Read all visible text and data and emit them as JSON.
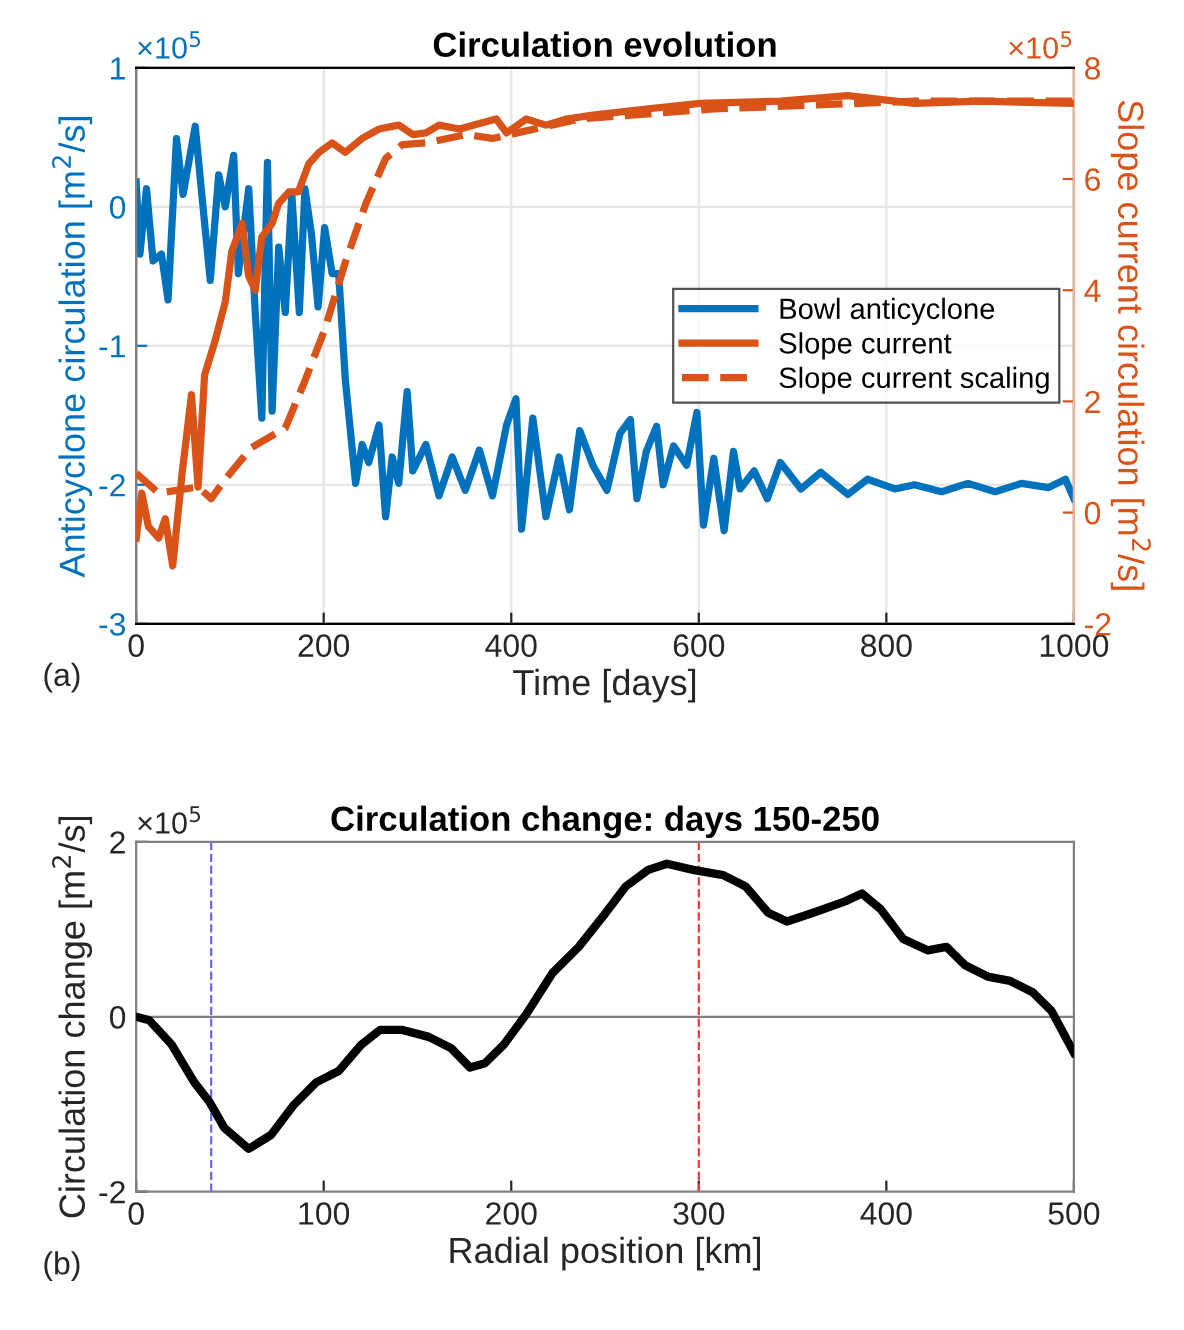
{
  "chart_data": [
    {
      "type": "line",
      "title": "Circulation evolution",
      "xlabel": "Time [days]",
      "ylabel": "Anticyclone circulation [m$^{2}$/s]",
      "y2label": "Slope current circulation [m$^{2}$/s]",
      "xlim": [
        0,
        1000
      ],
      "xticks": [
        0,
        200,
        400,
        600,
        800,
        1000
      ],
      "ylim": [
        -3,
        1
      ],
      "yticks": [
        -3,
        -2,
        -1,
        0,
        1
      ],
      "y2lim": [
        -2,
        8
      ],
      "y2ticks": [
        -2,
        0,
        2,
        4,
        6,
        8
      ],
      "grid": true,
      "legend": "center right",
      "marker": "none",
      "annotations": [
        "×10$^{5}$",
        "×10$^{5}$",
        "(a)"
      ],
      "series": [
        {
          "name": "Bowl anticyclone",
          "color": "#0072bd",
          "line_style": "solid",
          "x": [
            0,
            4,
            11,
            18,
            27,
            34,
            43,
            50,
            63,
            70,
            79,
            88,
            95,
            104,
            109,
            120,
            127,
            134,
            140,
            145,
            152,
            159,
            166,
            174,
            180,
            187,
            194,
            201,
            209,
            216,
            223,
            234,
            241,
            248,
            259,
            266,
            273,
            280,
            289,
            295,
            309,
            323,
            337,
            351,
            366,
            380,
            395,
            405,
            411,
            423,
            437,
            451,
            462,
            473,
            487,
            502,
            516,
            527,
            534,
            544,
            555,
            562,
            573,
            587,
            598,
            605,
            616,
            627,
            637,
            644,
            659,
            673,
            687,
            709,
            730,
            759,
            780,
            809,
            830,
            859,
            887,
            916,
            944,
            973,
            991,
            1000
          ],
          "values": [
            0.18,
            -0.34,
            0.13,
            -0.39,
            -0.34,
            -0.67,
            0.49,
            0.09,
            0.58,
            0.09,
            -0.53,
            0.23,
            0,
            0.37,
            -0.48,
            0.13,
            -0.76,
            -1.52,
            0.32,
            -1.47,
            -0.29,
            -0.76,
            0.09,
            -0.76,
            0.13,
            -0.2,
            -0.72,
            -0.15,
            -0.48,
            -0.48,
            -1.24,
            -1.99,
            -1.71,
            -1.84,
            -1.57,
            -2.23,
            -1.8,
            -1.99,
            -1.33,
            -1.9,
            -1.71,
            -2.08,
            -1.8,
            -2.04,
            -1.75,
            -2.08,
            -1.57,
            -1.38,
            -2.32,
            -1.52,
            -2.23,
            -1.8,
            -2.18,
            -1.61,
            -1.86,
            -2.04,
            -1.63,
            -1.53,
            -2.1,
            -1.76,
            -1.58,
            -2.0,
            -1.72,
            -1.86,
            -1.48,
            -2.29,
            -1.81,
            -2.33,
            -1.76,
            -2.03,
            -1.9,
            -2.1,
            -1.84,
            -2.03,
            -1.91,
            -2.07,
            -1.96,
            -2.03,
            -2.0,
            -2.05,
            -1.99,
            -2.05,
            -1.99,
            -2.02,
            -1.96,
            -2.1
          ]
        },
        {
          "name": "Slope current",
          "color": "#d95319",
          "line_style": "solid",
          "axis": "y2",
          "x": [
            0,
            6,
            13,
            24,
            31,
            39,
            49,
            59,
            66,
            73,
            84,
            95,
            102,
            113,
            120,
            127,
            134,
            145,
            152,
            163,
            173,
            184,
            195,
            209,
            223,
            241,
            259,
            280,
            295,
            309,
            323,
            345,
            366,
            384,
            395,
            416,
            437,
            459,
            487,
            544,
            601,
            687,
            759,
            830,
            901,
            1000
          ],
          "values": [
            -0.46,
            0.35,
            -0.25,
            -0.46,
            -0.11,
            -0.96,
            0.71,
            2.12,
            0.46,
            2.48,
            3.08,
            3.79,
            4.7,
            5.2,
            4.25,
            4.0,
            4.96,
            5.2,
            5.56,
            5.77,
            5.77,
            6.27,
            6.48,
            6.65,
            6.48,
            6.73,
            6.9,
            6.97,
            6.8,
            6.83,
            6.97,
            6.9,
            7.0,
            7.08,
            6.83,
            7.08,
            6.97,
            7.08,
            7.15,
            7.26,
            7.36,
            7.4,
            7.5,
            7.36,
            7.4,
            7.36
          ]
        },
        {
          "name": "Slope current scaling",
          "color": "#d95319",
          "line_style": "dashed",
          "axis": "y2",
          "x": [
            0,
            24,
            66,
            80,
            95,
            123,
            159,
            180,
            201,
            223,
            245,
            266,
            284,
            309,
            352,
            380,
            473,
            616,
            723,
            830,
            1000
          ],
          "values": [
            0.71,
            0.35,
            0.46,
            0.25,
            0.6,
            1.17,
            1.52,
            2.37,
            3.29,
            4.5,
            5.56,
            6.37,
            6.62,
            6.65,
            6.8,
            6.73,
            7.08,
            7.26,
            7.33,
            7.4,
            7.4
          ]
        }
      ]
    },
    {
      "type": "line",
      "title": "Circulation change: days 150-250",
      "xlabel": "Radial position [km]",
      "ylabel": "Circulation change [m$^{2}$/s]",
      "xlim": [
        0,
        500
      ],
      "xticks": [
        0,
        100,
        200,
        300,
        400,
        500
      ],
      "ylim": [
        -2,
        2
      ],
      "yticks": [
        -2,
        0,
        2
      ],
      "grid": false,
      "marker": "none",
      "annotations": [
        "×10$^{5}$",
        "(b)"
      ],
      "ref_lines": [
        {
          "axis": "y",
          "value": 0,
          "color": "#808080",
          "line_style": "solid"
        },
        {
          "axis": "x",
          "value": 40,
          "color": "#6666ff",
          "line_style": "dashed"
        },
        {
          "axis": "x",
          "value": 300,
          "color": "#ff3333",
          "line_style": "dashed"
        }
      ],
      "series": [
        {
          "color": "#000000",
          "line_style": "solid",
          "x": [
            0,
            7,
            19,
            31,
            39,
            47,
            60,
            72,
            84,
            96,
            108,
            120,
            130,
            142,
            156,
            168,
            178,
            186,
            196,
            208,
            222,
            236,
            249,
            261,
            273,
            283,
            297,
            313,
            325,
            337,
            347,
            361,
            378,
            387,
            397,
            409,
            422,
            432,
            442,
            454,
            466,
            478,
            488,
            500
          ],
          "values": [
            0,
            -0.04,
            -0.32,
            -0.75,
            -0.97,
            -1.27,
            -1.51,
            -1.35,
            -1.01,
            -0.75,
            -0.62,
            -0.32,
            -0.15,
            -0.15,
            -0.23,
            -0.36,
            -0.58,
            -0.53,
            -0.32,
            0.03,
            0.5,
            0.8,
            1.15,
            1.49,
            1.68,
            1.75,
            1.68,
            1.62,
            1.49,
            1.19,
            1.09,
            1.19,
            1.32,
            1.41,
            1.23,
            0.89,
            0.76,
            0.8,
            0.59,
            0.46,
            0.41,
            0.28,
            0.07,
            -0.41
          ]
        }
      ]
    }
  ]
}
